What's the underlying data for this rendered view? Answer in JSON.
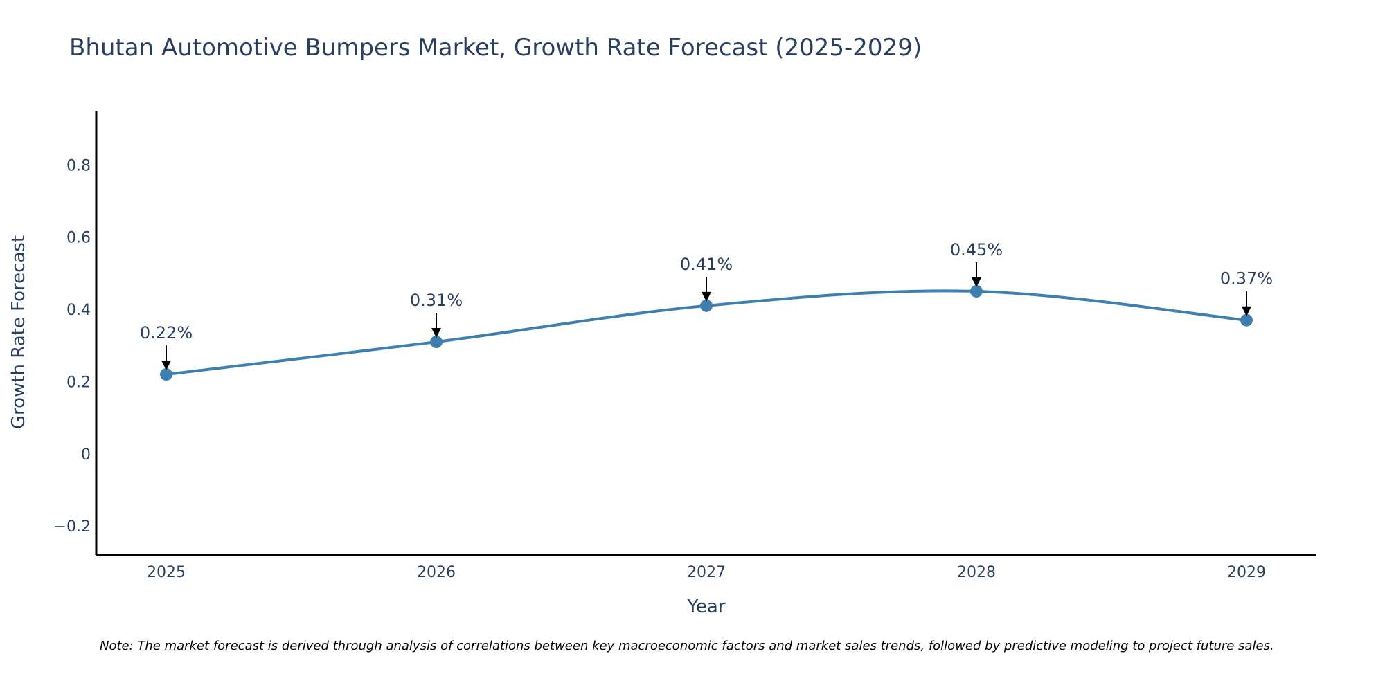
{
  "chart_data": {
    "type": "line",
    "title": "Bhutan Automotive Bumpers Market, Growth Rate Forecast (2025-2029)",
    "xlabel": "Year",
    "ylabel": "Growth Rate Forecast",
    "categories": [
      "2025",
      "2026",
      "2027",
      "2028",
      "2029"
    ],
    "values": [
      0.22,
      0.31,
      0.41,
      0.45,
      0.37
    ],
    "annotations": [
      "0.22%",
      "0.31%",
      "0.41%",
      "0.45%",
      "0.37%"
    ],
    "ylim": [
      -0.28,
      0.95
    ],
    "yticks": [
      -0.2,
      0,
      0.2,
      0.4,
      0.6,
      0.8
    ],
    "ytick_labels": [
      "−0.2",
      "0",
      "0.2",
      "0.4",
      "0.6",
      "0.8"
    ],
    "grid": false,
    "line_shape": "spline",
    "line_color": "#3f7fb0",
    "marker_color": "#3f7fb0"
  },
  "note": "Note: The market forecast is derived through analysis of correlations between key macroeconomic factors and market sales trends, followed by predictive modeling to project future sales."
}
